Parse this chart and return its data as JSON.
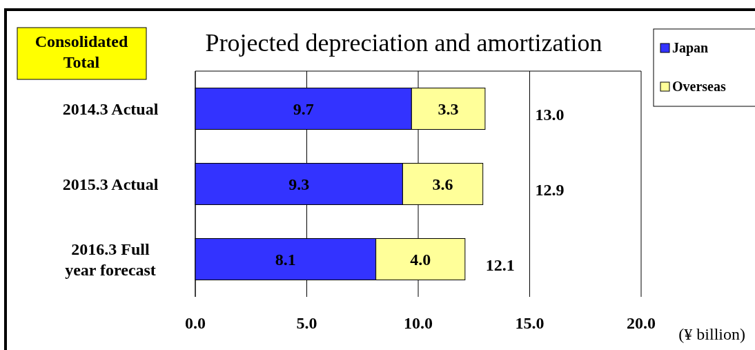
{
  "chart_data": {
    "type": "bar",
    "orientation": "horizontal",
    "stacked": true,
    "title": "Projected depreciation and amortization",
    "xlabel": "(¥ billion)",
    "annotations": [
      "Consolidated Total"
    ],
    "categories": [
      "2014.3 Actual",
      "2015.3 Actual",
      "2016.3 Full year forecast"
    ],
    "series": [
      {
        "name": "Japan",
        "color": "#3333ff",
        "values": [
          9.7,
          9.3,
          8.1
        ],
        "value_labels": [
          "9.7",
          "9.3",
          "8.1"
        ]
      },
      {
        "name": "Overseas",
        "color": "#ffff99",
        "values": [
          3.3,
          3.6,
          4.0
        ],
        "value_labels": [
          "3.3",
          "3.6",
          "4.0"
        ]
      }
    ],
    "totals": [
      "13.0",
      "12.9",
      "12.1"
    ],
    "xlim": [
      0,
      20
    ],
    "xticks": [
      {
        "value": 0,
        "label": "0.0"
      },
      {
        "value": 5,
        "label": "5.0"
      },
      {
        "value": 10,
        "label": "10.0"
      },
      {
        "value": 15,
        "label": "15.0"
      },
      {
        "value": 20,
        "label": "20.0"
      }
    ],
    "grid": "x",
    "legend": "top right"
  }
}
